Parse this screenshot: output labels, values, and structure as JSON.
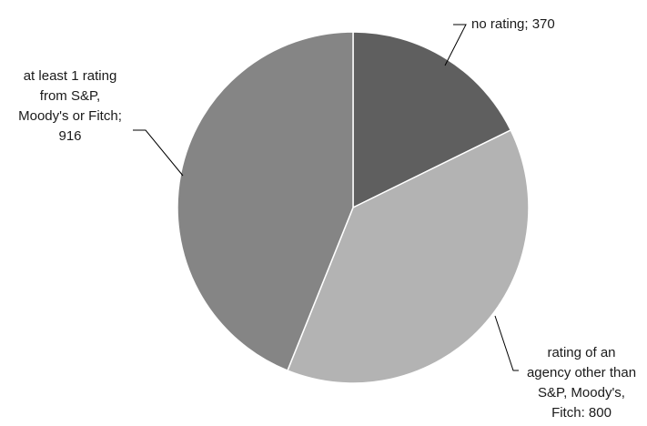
{
  "chart_data": {
    "type": "pie",
    "title": "",
    "start_angle_deg": 0,
    "direction": "clockwise",
    "legend": "none",
    "slices": [
      {
        "category": "no rating",
        "value": 370,
        "label_lines": [
          "no rating; 370"
        ],
        "color": "#5f5f5f"
      },
      {
        "category": "rating of an agency other than S&P, Moody's, Fitch",
        "value": 800,
        "label_lines": [
          "rating of an",
          "agency other than",
          "S&P, Moody's,",
          "Fitch: 800"
        ],
        "color": "#b3b3b3"
      },
      {
        "category": "at least 1 rating from S&P, Moody's or Fitch",
        "value": 916,
        "label_lines": [
          "at least 1 rating",
          "from S&P,",
          "Moody's or Fitch;",
          "916"
        ],
        "color": "#858585"
      }
    ]
  }
}
